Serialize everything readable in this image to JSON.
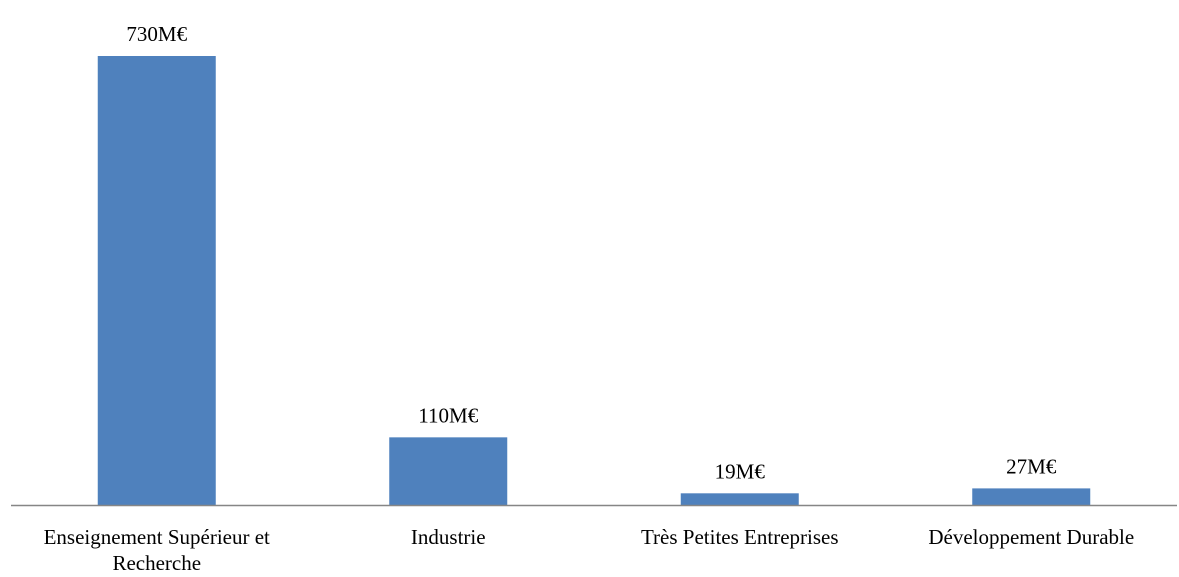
{
  "chart_data": {
    "type": "bar",
    "categories": [
      [
        "Enseignement Supérieur et",
        "Recherche"
      ],
      [
        "Industrie"
      ],
      [
        "Très Petites Entreprises"
      ],
      [
        "Développement Durable"
      ]
    ],
    "values": [
      730,
      110,
      19,
      27
    ],
    "data_labels": [
      "730M€",
      "110M€",
      "19M€",
      "27M€"
    ],
    "ylim": [
      0,
      730
    ],
    "grid": false,
    "legend": "none",
    "bar_color": "#4F81BD",
    "axis_color": "#868686"
  }
}
